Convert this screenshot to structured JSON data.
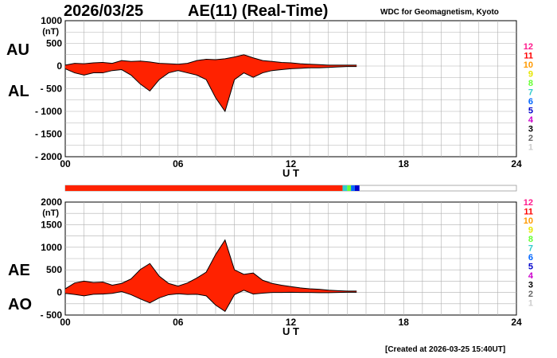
{
  "header": {
    "date": "2026/03/25",
    "title": "AE(11) (Real-Time)",
    "source": "WDC for Geomagnetism, Kyoto"
  },
  "footer": {
    "created": "[Created at 2026-03-25 15:40UT]"
  },
  "legend": {
    "items": [
      {
        "label": "12",
        "color": "#ff1a8c"
      },
      {
        "label": "11",
        "color": "#ff0000"
      },
      {
        "label": "10",
        "color": "#ff9900"
      },
      {
        "label": "9",
        "color": "#e6e600"
      },
      {
        "label": "8",
        "color": "#66ff33"
      },
      {
        "label": "7",
        "color": "#33cccc"
      },
      {
        "label": "6",
        "color": "#0066ff"
      },
      {
        "label": "5",
        "color": "#0000cc"
      },
      {
        "label": "4",
        "color": "#cc00cc"
      },
      {
        "label": "3",
        "color": "#000000"
      },
      {
        "label": "2",
        "color": "#666666"
      },
      {
        "label": "1",
        "color": "#cccccc"
      }
    ]
  },
  "status_bar": {
    "segments": [
      {
        "from": 0,
        "to": 14.75,
        "color": "#ff2200"
      },
      {
        "from": 14.75,
        "to": 15.0,
        "color": "#33cccc"
      },
      {
        "from": 15.0,
        "to": 15.2,
        "color": "#66ff33"
      },
      {
        "from": 15.2,
        "to": 15.4,
        "color": "#0066ff"
      },
      {
        "from": 15.4,
        "to": 15.65,
        "color": "#0000cc"
      }
    ]
  },
  "chart_data": [
    {
      "type": "area",
      "title": "",
      "labels_left": [
        "AU",
        "AL"
      ],
      "unit": "(nT)",
      "xlabel": "U T",
      "xlim": [
        0,
        24
      ],
      "xticks": [
        "00",
        "06",
        "12",
        "18",
        "24"
      ],
      "ylim": [
        -2000,
        1000
      ],
      "yticks": [
        "1000",
        "500",
        "0",
        "- 500",
        "- 1000",
        "- 1500",
        "- 2000"
      ],
      "fill_color": "#ff2200",
      "grid": true,
      "series": [
        {
          "name": "AU",
          "x": [
            0,
            0.5,
            1,
            1.5,
            2,
            2.5,
            3,
            3.5,
            4,
            4.5,
            5,
            5.5,
            6,
            6.5,
            7,
            7.5,
            8,
            8.5,
            9,
            9.5,
            10,
            10.5,
            11,
            11.5,
            12,
            12.5,
            13,
            13.5,
            14,
            14.5,
            15,
            15.5
          ],
          "y": [
            20,
            60,
            50,
            70,
            80,
            60,
            120,
            100,
            110,
            90,
            60,
            50,
            40,
            60,
            120,
            150,
            140,
            160,
            200,
            250,
            180,
            120,
            100,
            80,
            70,
            50,
            40,
            30,
            20,
            20,
            20,
            20
          ]
        },
        {
          "name": "AL",
          "x": [
            0,
            0.5,
            1,
            1.5,
            2,
            2.5,
            3,
            3.5,
            4,
            4.5,
            5,
            5.5,
            6,
            6.5,
            7,
            7.5,
            8,
            8.5,
            9,
            9.5,
            10,
            10.5,
            11,
            11.5,
            12,
            12.5,
            13,
            13.5,
            14,
            14.5,
            15,
            15.5
          ],
          "y": [
            -60,
            -150,
            -200,
            -150,
            -150,
            -100,
            -80,
            -200,
            -400,
            -550,
            -300,
            -150,
            -100,
            -150,
            -200,
            -300,
            -700,
            -1000,
            -300,
            -150,
            -250,
            -150,
            -100,
            -80,
            -60,
            -50,
            -40,
            -40,
            -30,
            -20,
            -10,
            -10
          ]
        }
      ]
    },
    {
      "type": "area",
      "title": "",
      "labels_left": [
        "AE",
        "AO"
      ],
      "unit": "(nT)",
      "xlabel": "U T",
      "xlim": [
        0,
        24
      ],
      "xticks": [
        "00",
        "06",
        "12",
        "18",
        "24"
      ],
      "ylim": [
        -500,
        2000
      ],
      "yticks": [
        "2000",
        "1500",
        "1000",
        "500",
        "0",
        "- 500"
      ],
      "fill_color": "#ff2200",
      "grid": true,
      "series": [
        {
          "name": "AE",
          "x": [
            0,
            0.5,
            1,
            1.5,
            2,
            2.5,
            3,
            3.5,
            4,
            4.5,
            5,
            5.5,
            6,
            6.5,
            7,
            7.5,
            8,
            8.5,
            9,
            9.5,
            10,
            10.5,
            11,
            11.5,
            12,
            12.5,
            13,
            13.5,
            14,
            14.5,
            15,
            15.5
          ],
          "y": [
            80,
            210,
            250,
            220,
            230,
            160,
            200,
            300,
            510,
            640,
            360,
            200,
            140,
            210,
            320,
            450,
            840,
            1160,
            500,
            400,
            430,
            270,
            200,
            160,
            130,
            100,
            80,
            70,
            50,
            40,
            30,
            30
          ]
        },
        {
          "name": "AO",
          "x": [
            0,
            0.5,
            1,
            1.5,
            2,
            2.5,
            3,
            3.5,
            4,
            4.5,
            5,
            5.5,
            6,
            6.5,
            7,
            7.5,
            8,
            8.5,
            9,
            9.5,
            10,
            10.5,
            11,
            11.5,
            12,
            12.5,
            13,
            13.5,
            14,
            14.5,
            15,
            15.5
          ],
          "y": [
            -20,
            -45,
            -75,
            -40,
            -35,
            -20,
            20,
            -50,
            -145,
            -230,
            -120,
            -50,
            -30,
            -45,
            -40,
            -75,
            -280,
            -420,
            -50,
            50,
            -35,
            -15,
            0,
            0,
            5,
            0,
            0,
            -5,
            -5,
            0,
            5,
            5
          ]
        }
      ]
    }
  ]
}
